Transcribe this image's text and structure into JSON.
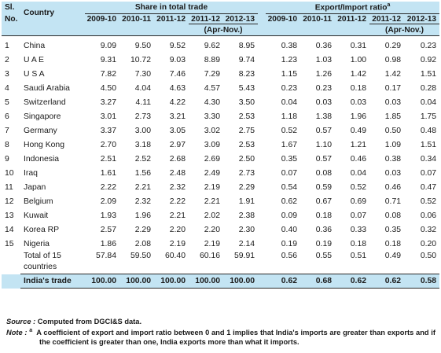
{
  "header": {
    "sl_top": "Sl.",
    "sl_bottom": "No.",
    "country": "Country",
    "share_group": "Share in total trade",
    "ratio_group": "Export/Import ratio",
    "ratio_sup": "a",
    "years": [
      "2009-10",
      "2010-11",
      "2011-12",
      "2011-12",
      "2012-13"
    ],
    "period": "(Apr-Nov.)"
  },
  "rows": [
    {
      "sl": "1",
      "country": "China",
      "share": [
        "9.09",
        "9.50",
        "9.52",
        "9.62",
        "8.95"
      ],
      "ratio": [
        "0.38",
        "0.36",
        "0.31",
        "0.29",
        "0.23"
      ]
    },
    {
      "sl": "2",
      "country": "U A E",
      "share": [
        "9.31",
        "10.72",
        "9.03",
        "8.89",
        "9.74"
      ],
      "ratio": [
        "1.23",
        "1.03",
        "1.00",
        "0.98",
        "0.92"
      ]
    },
    {
      "sl": "3",
      "country": "U S A",
      "share": [
        "7.82",
        "7.30",
        "7.46",
        "7.29",
        "8.23"
      ],
      "ratio": [
        "1.15",
        "1.26",
        "1.42",
        "1.42",
        "1.51"
      ]
    },
    {
      "sl": "4",
      "country": "Saudi Arabia",
      "share": [
        "4.50",
        "4.04",
        "4.63",
        "4.57",
        "5.43"
      ],
      "ratio": [
        "0.23",
        "0.23",
        "0.18",
        "0.17",
        "0.28"
      ]
    },
    {
      "sl": "5",
      "country": "Switzerland",
      "share": [
        "3.27",
        "4.11",
        "4.22",
        "4.30",
        "3.50"
      ],
      "ratio": [
        "0.04",
        "0.03",
        "0.03",
        "0.03",
        "0.04"
      ]
    },
    {
      "sl": "6",
      "country": "Singapore",
      "share": [
        "3.01",
        "2.73",
        "3.21",
        "3.30",
        "2.53"
      ],
      "ratio": [
        "1.18",
        "1.38",
        "1.96",
        "1.85",
        "1.75"
      ]
    },
    {
      "sl": "7",
      "country": "Germany",
      "share": [
        "3.37",
        "3.00",
        "3.05",
        "3.02",
        "2.75"
      ],
      "ratio": [
        "0.52",
        "0.57",
        "0.49",
        "0.50",
        "0.48"
      ]
    },
    {
      "sl": "8",
      "country": "Hong Kong",
      "share": [
        "2.70",
        "3.18",
        "2.97",
        "3.09",
        "2.53"
      ],
      "ratio": [
        "1.67",
        "1.10",
        "1.21",
        "1.09",
        "1.51"
      ]
    },
    {
      "sl": "9",
      "country": "Indonesia",
      "share": [
        "2.51",
        "2.52",
        "2.68",
        "2.69",
        "2.50"
      ],
      "ratio": [
        "0.35",
        "0.57",
        "0.46",
        "0.38",
        "0.34"
      ]
    },
    {
      "sl": "10",
      "country": "Iraq",
      "share": [
        "1.61",
        "1.56",
        "2.48",
        "2.49",
        "2.73"
      ],
      "ratio": [
        "0.07",
        "0.08",
        "0.04",
        "0.03",
        "0.07"
      ]
    },
    {
      "sl": "11",
      "country": "Japan",
      "share": [
        "2.22",
        "2.21",
        "2.32",
        "2.19",
        "2.29"
      ],
      "ratio": [
        "0.54",
        "0.59",
        "0.52",
        "0.46",
        "0.47"
      ]
    },
    {
      "sl": "12",
      "country": "Belgium",
      "share": [
        "2.09",
        "2.32",
        "2.22",
        "2.21",
        "1.91"
      ],
      "ratio": [
        "0.62",
        "0.67",
        "0.69",
        "0.71",
        "0.52"
      ]
    },
    {
      "sl": "13",
      "country": "Kuwait",
      "share": [
        "1.93",
        "1.96",
        "2.21",
        "2.02",
        "2.38"
      ],
      "ratio": [
        "0.09",
        "0.18",
        "0.07",
        "0.08",
        "0.06"
      ]
    },
    {
      "sl": "14",
      "country": "Korea RP",
      "share": [
        "2.57",
        "2.29",
        "2.20",
        "2.20",
        "2.30"
      ],
      "ratio": [
        "0.40",
        "0.36",
        "0.33",
        "0.35",
        "0.32"
      ]
    },
    {
      "sl": "15",
      "country": "Nigeria",
      "share": [
        "1.86",
        "2.08",
        "2.19",
        "2.19",
        "2.14"
      ],
      "ratio": [
        "0.19",
        "0.19",
        "0.18",
        "0.18",
        "0.20"
      ]
    }
  ],
  "total": {
    "label_line1": "Total of 15",
    "label_line2": "countries",
    "share": [
      "57.84",
      "59.50",
      "60.40",
      "60.16",
      "59.91"
    ],
    "ratio": [
      "0.56",
      "0.55",
      "0.51",
      "0.49",
      "0.50"
    ]
  },
  "india": {
    "label": "India's trade",
    "share": [
      "100.00",
      "100.00",
      "100.00",
      "100.00",
      "100.00"
    ],
    "ratio": [
      "0.62",
      "0.68",
      "0.62",
      "0.62",
      "0.58"
    ]
  },
  "notes": {
    "source_label": "Source :",
    "source_text": "Computed from DGCI&S data.",
    "note_label": "Note :",
    "note_sup": "a",
    "note_text": "A coefficient of export and import ratio between 0 and 1 implies that India's imports are greater than exports and if the coefficient is greater than one, India exports more than what it imports."
  }
}
